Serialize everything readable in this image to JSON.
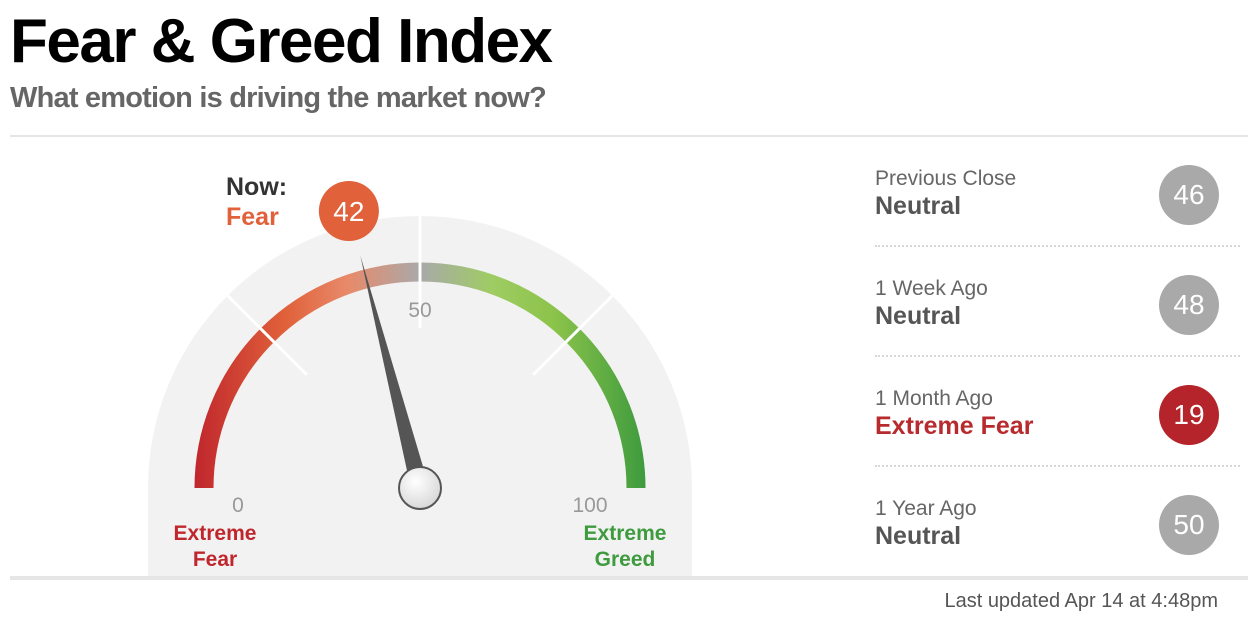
{
  "header": {
    "title": "Fear & Greed Index",
    "subtitle": "What emotion is driving the market now?"
  },
  "chart_data": {
    "type": "gauge",
    "value": 42,
    "range": [
      0,
      100
    ],
    "now_label": "Now:",
    "now_rating": "Fear",
    "tick_labels": {
      "min": "0",
      "mid": "50",
      "max": "100"
    },
    "end_labels": {
      "left": [
        "Extreme",
        "Fear"
      ],
      "right": [
        "Extreme",
        "Greed"
      ]
    },
    "colors": {
      "extreme_fear": "#c0272d",
      "fear": "#e0613a",
      "neutral": "#a9a9a9",
      "greed": "#8bc34a",
      "extreme_greed": "#3e9b3e",
      "needle": "#555555",
      "background": "#f2f2f2"
    }
  },
  "history": [
    {
      "label": "Previous Close",
      "rating": "Neutral",
      "value": "46",
      "state": "neutral"
    },
    {
      "label": "1 Week Ago",
      "rating": "Neutral",
      "value": "48",
      "state": "neutral"
    },
    {
      "label": "1 Month Ago",
      "rating": "Extreme Fear",
      "value": "19",
      "state": "extreme-fear"
    },
    {
      "label": "1 Year Ago",
      "rating": "Neutral",
      "value": "50",
      "state": "neutral"
    }
  ],
  "footer": {
    "last_updated": "Last updated Apr 14 at 4:48pm"
  }
}
